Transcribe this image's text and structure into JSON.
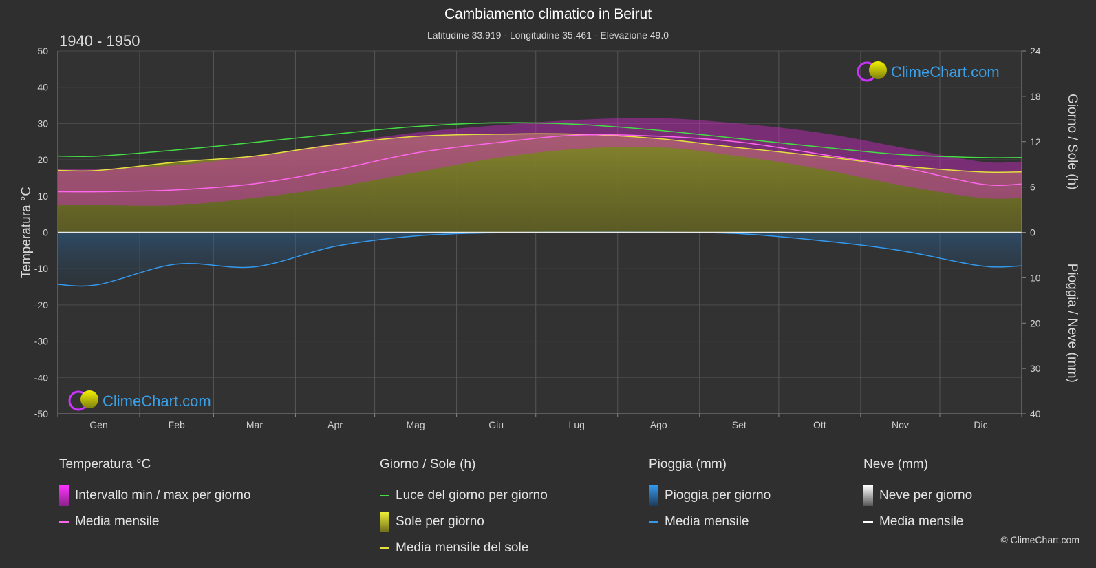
{
  "header": {
    "title": "Cambiamento climatico in Beirut",
    "subtitle": "Latitudine 33.919 - Longitudine 35.461 - Elevazione 49.0",
    "period": "1940 - 1950"
  },
  "brand": {
    "name": "ClimeChart.com",
    "copyright": "© ClimeChart.com"
  },
  "chart_data": {
    "type": "area",
    "categories": [
      "Gen",
      "Feb",
      "Mar",
      "Apr",
      "Mag",
      "Giu",
      "Lug",
      "Ago",
      "Set",
      "Ott",
      "Nov",
      "Dic"
    ],
    "axes": {
      "left": {
        "label": "Temperatura °C",
        "range": [
          -50,
          50
        ],
        "ticks": [
          50,
          40,
          30,
          20,
          10,
          0,
          -10,
          -20,
          -30,
          -40,
          -50
        ]
      },
      "right_top": {
        "label": "Giorno / Sole (h)",
        "range": [
          0,
          24
        ],
        "ticks": [
          24,
          18,
          12,
          6,
          0
        ]
      },
      "right_bottom": {
        "label": "Pioggia / Neve (mm)",
        "range": [
          0,
          40
        ],
        "ticks": [
          0,
          10,
          20,
          30,
          40
        ]
      }
    },
    "grid": true,
    "series": [
      {
        "name": "Luce del giorno per giorno",
        "unit": "h",
        "color": "#44dd44",
        "values": [
          10.1,
          10.9,
          11.9,
          13.0,
          14.0,
          14.5,
          14.3,
          13.5,
          12.4,
          11.3,
          10.3,
          9.9
        ]
      },
      {
        "name": "Media mensile del sole",
        "unit": "h",
        "color": "#e4e040",
        "values": [
          8.2,
          9.3,
          10.1,
          11.6,
          12.7,
          13.0,
          13.0,
          12.4,
          11.2,
          10.1,
          8.8,
          8.0
        ]
      },
      {
        "name": "Media mensile",
        "group": "Temperatura °C",
        "unit": "°C",
        "color": "#ff66ee",
        "values": [
          11.2,
          11.7,
          13.4,
          17.2,
          21.9,
          24.7,
          26.8,
          26.5,
          24.9,
          21.6,
          18.0,
          13.3
        ]
      },
      {
        "name": "Intervallo min / max per giorno (max)",
        "unit": "°C",
        "color": "#cc22cc",
        "values": [
          17.5,
          18.5,
          21.0,
          24.5,
          27.5,
          29.5,
          31.0,
          31.5,
          30.0,
          27.5,
          23.5,
          19.5
        ]
      },
      {
        "name": "Intervallo min / max per giorno (min)",
        "unit": "°C",
        "color": "#cc22cc",
        "values": [
          7.5,
          7.5,
          9.5,
          12.5,
          16.5,
          20.5,
          23.0,
          23.5,
          21.0,
          17.5,
          13.0,
          9.5
        ]
      },
      {
        "name": "Media mensile",
        "group": "Pioggia (mm)",
        "unit": "mm",
        "color": "#3399ee",
        "values": [
          11.5,
          7.0,
          7.6,
          3.1,
          0.8,
          0.1,
          0.0,
          0.0,
          0.3,
          1.8,
          4.0,
          7.4
        ]
      },
      {
        "name": "Media mensile",
        "group": "Neve (mm)",
        "unit": "mm",
        "color": "#ffffff",
        "values": [
          0,
          0,
          0,
          0,
          0,
          0,
          0,
          0,
          0,
          0,
          0,
          0
        ]
      }
    ]
  },
  "legend": {
    "groups": [
      {
        "title": "Temperatura °C",
        "items": [
          {
            "label": "Intervallo min / max per giorno",
            "swatch": "box",
            "color": "#dd22dd"
          },
          {
            "label": "Media mensile",
            "swatch": "line",
            "color": "#ff66ee"
          }
        ]
      },
      {
        "title": "Giorno / Sole (h)",
        "items": [
          {
            "label": "Luce del giorno per giorno",
            "swatch": "line",
            "color": "#44dd44"
          },
          {
            "label": "Sole per giorno",
            "swatch": "box",
            "color": "#d8d830"
          },
          {
            "label": "Media mensile del sole",
            "swatch": "line",
            "color": "#e4e040"
          }
        ]
      },
      {
        "title": "Pioggia (mm)",
        "items": [
          {
            "label": "Pioggia per giorno",
            "swatch": "box",
            "color": "#2a86d6"
          },
          {
            "label": "Media mensile",
            "swatch": "line",
            "color": "#3399ee"
          }
        ]
      },
      {
        "title": "Neve (mm)",
        "items": [
          {
            "label": "Neve per giorno",
            "swatch": "box",
            "color": "#dddddd"
          },
          {
            "label": "Media mensile",
            "swatch": "line",
            "color": "#ffffff"
          }
        ]
      }
    ]
  }
}
